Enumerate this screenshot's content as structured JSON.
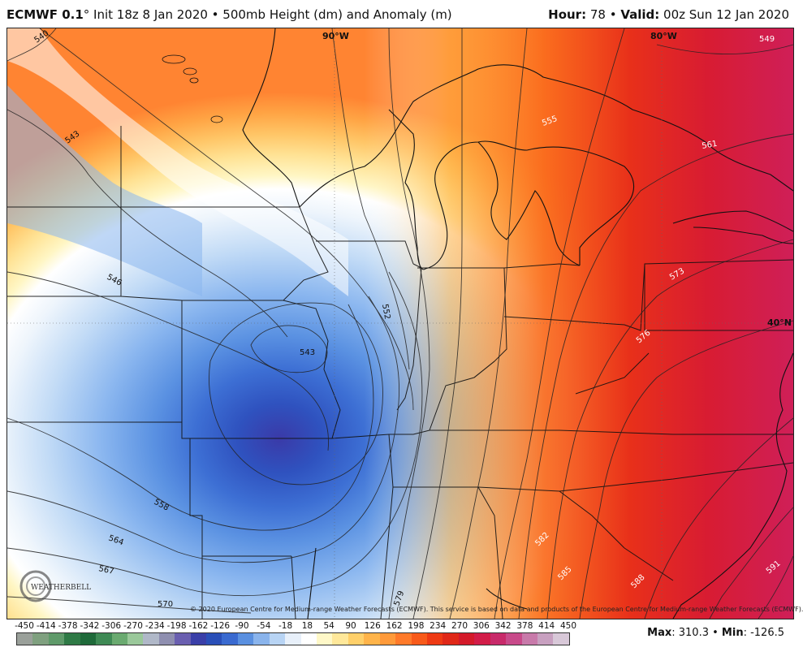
{
  "header": {
    "model": "ECMWF 0.1",
    "degree": "°",
    "init": " Init 18z 8 Jan 2020",
    "sep": " • ",
    "product": "500mb Height (dm) and Anomaly (m)",
    "hour_label": "Hour:",
    "hour_value": " 78",
    "valid_label": "Valid:",
    "valid_value": " 00z Sun 12 Jan 2020"
  },
  "map": {
    "lon_labels": [
      "90°W",
      "80°W"
    ],
    "lat_labels": [
      "40°N"
    ],
    "contour_labels": [
      "540",
      "543",
      "546",
      "543",
      "552",
      "549",
      "555",
      "561",
      "573",
      "576",
      "558",
      "564",
      "567",
      "570",
      "579",
      "582",
      "585",
      "588",
      "591"
    ],
    "copyright": "© 2020 European Centre for Medium-range Weather Forecasts (ECMWF). This service is based on data and products of the European Centre for Medium-range Weather Forecasts (ECMWF).",
    "logo_text": "WEATHERBELL"
  },
  "colorbar": {
    "labels": [
      "-450",
      "-414",
      "-378",
      "-342",
      "-306",
      "-270",
      "-234",
      "-198",
      "-162",
      "-126",
      "-90",
      "-54",
      "-18",
      "18",
      "54",
      "90",
      "126",
      "162",
      "198",
      "234",
      "270",
      "306",
      "342",
      "378",
      "414",
      "450"
    ],
    "colors": [
      "#9aa09a",
      "#7fa07f",
      "#5f9a6a",
      "#2f7a46",
      "#1f6a3a",
      "#3f8a55",
      "#6aaa70",
      "#9ac89a",
      "#b0b8c8",
      "#8f8fb0",
      "#6a5fb0",
      "#3a3fa8",
      "#2a4fb8",
      "#3a6ad0",
      "#5a90e0",
      "#8ab4ec",
      "#b8d4f4",
      "#e8f0fa",
      "#ffffff",
      "#fff8c8",
      "#ffe89a",
      "#ffd06a",
      "#ffb44a",
      "#ff9a3a",
      "#ff7a2a",
      "#f85a1a",
      "#ee3a14",
      "#e02818",
      "#d41a2a",
      "#d21c48",
      "#c82a6a",
      "#c84a8a",
      "#c87aaa",
      "#c8a0c0",
      "#d8c8d8"
    ],
    "max_label": "Max",
    "max_value": ": 310.3",
    "min_label": "Min",
    "min_value": ": -126.5",
    "sep": " • "
  }
}
